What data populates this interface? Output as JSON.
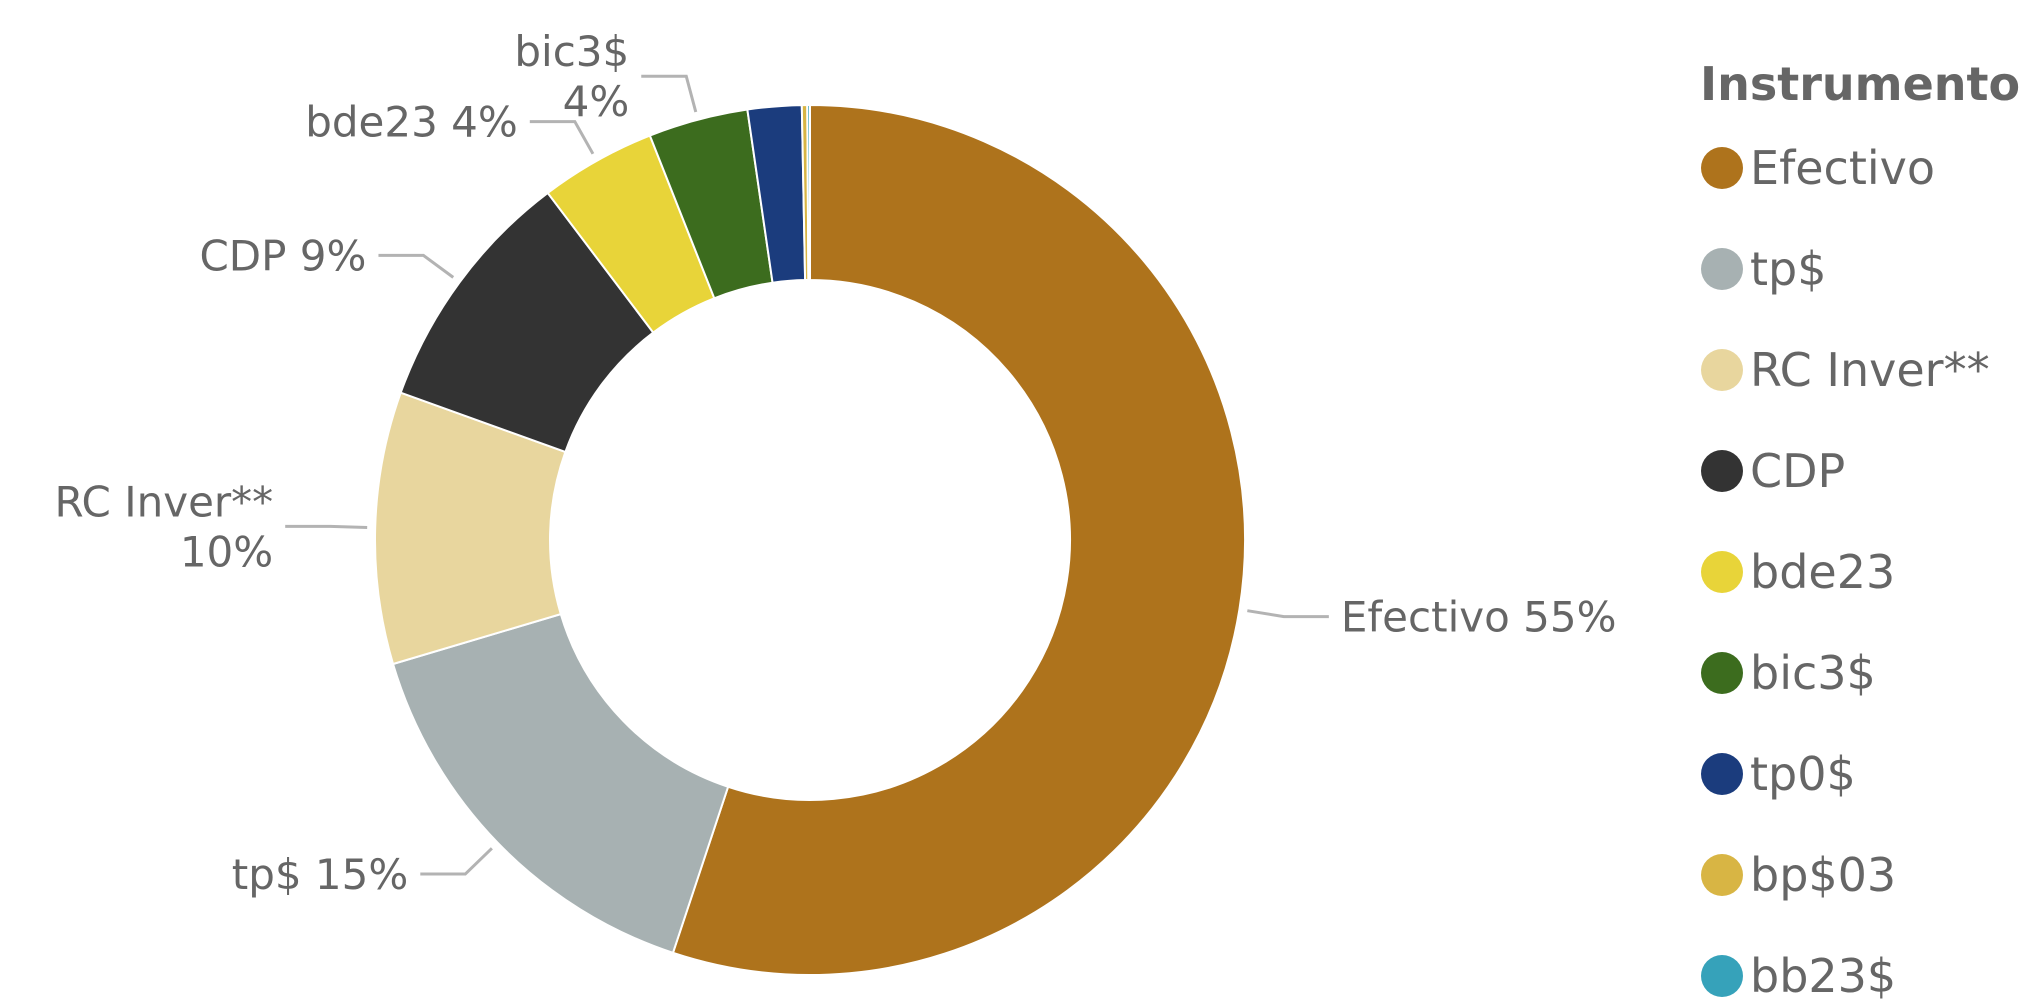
{
  "chart_data": {
    "type": "pie",
    "donut": true,
    "legend_title": "Instrumento",
    "legend_position": "right",
    "categories": [
      "Efectivo",
      "tp$",
      "RC Inver**",
      "CDP",
      "bde23",
      "bic3$",
      "tp0$",
      "bp$03",
      "bb23$"
    ],
    "values": [
      55.1,
      15.3,
      10.1,
      9.2,
      4.3,
      3.7,
      2.0,
      0.2,
      0.1
    ],
    "colors": [
      "#AE731C",
      "#A7B1B2",
      "#E8D69E",
      "#333333",
      "#E8D439",
      "#3C6C1E",
      "#1B3C7D",
      "#D8B544",
      "#36A2BA"
    ],
    "data_labels": [
      {
        "text": [
          "Efectivo 55%"
        ]
      },
      {
        "text": [
          "tp$ 15%"
        ]
      },
      {
        "text": [
          "RC Inver**",
          "10%"
        ]
      },
      {
        "text": [
          "CDP 9%"
        ]
      },
      {
        "text": [
          "bde23 4%"
        ]
      },
      {
        "text": [
          "bic3$",
          "4%"
        ]
      }
    ]
  }
}
